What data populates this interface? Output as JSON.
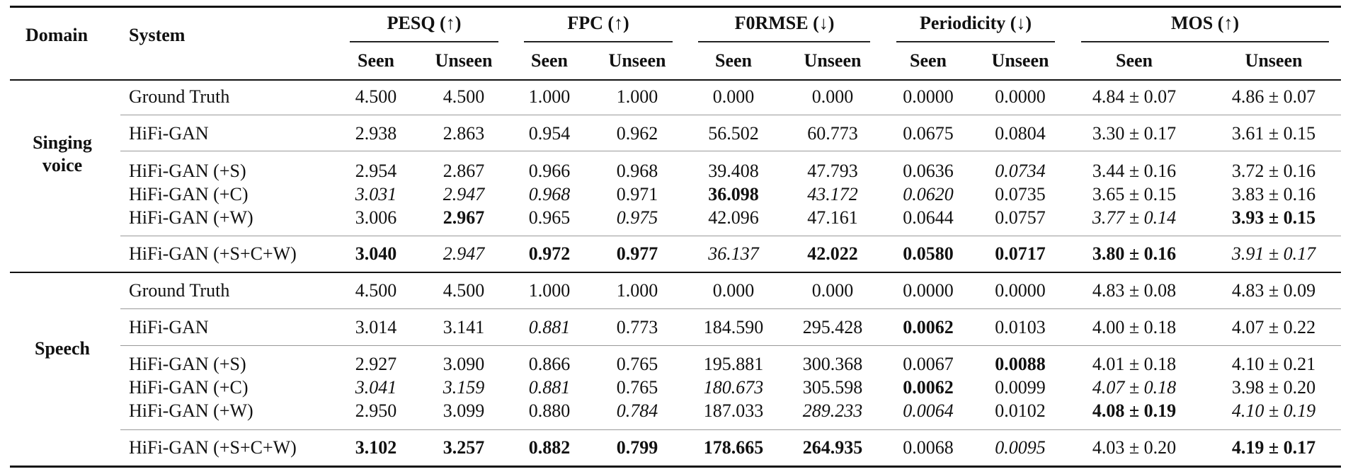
{
  "header": {
    "domain": "Domain",
    "system": "System",
    "groups": [
      {
        "label": "PESQ (↑)"
      },
      {
        "label": "FPC (↑)"
      },
      {
        "label": "F0RMSE (↓)"
      },
      {
        "label": "Periodicity (↓)"
      },
      {
        "label": "MOS (↑)"
      }
    ],
    "sub": [
      "Seen",
      "Unseen",
      "Seen",
      "Unseen",
      "Seen",
      "Unseen",
      "Seen",
      "Unseen",
      "Seen",
      "Unseen"
    ]
  },
  "sections": [
    {
      "domain": [
        "Singing",
        "voice"
      ],
      "rows": [
        {
          "system": "Ground Truth",
          "cells": [
            {
              "v": "4.500"
            },
            {
              "v": "4.500"
            },
            {
              "v": "1.000"
            },
            {
              "v": "1.000"
            },
            {
              "v": "0.000"
            },
            {
              "v": "0.000"
            },
            {
              "v": "0.0000"
            },
            {
              "v": "0.0000"
            },
            {
              "v": "4.84 ± 0.07"
            },
            {
              "v": "4.86 ± 0.07"
            }
          ]
        },
        {
          "system": "HiFi-GAN",
          "cells": [
            {
              "v": "2.938"
            },
            {
              "v": "2.863"
            },
            {
              "v": "0.954"
            },
            {
              "v": "0.962"
            },
            {
              "v": "56.502"
            },
            {
              "v": "60.773"
            },
            {
              "v": "0.0675"
            },
            {
              "v": "0.0804"
            },
            {
              "v": "3.30 ± 0.17"
            },
            {
              "v": "3.61 ± 0.15"
            }
          ]
        },
        {
          "system": "HiFi-GAN (+S)",
          "cells": [
            {
              "v": "2.954"
            },
            {
              "v": "2.867"
            },
            {
              "v": "0.966"
            },
            {
              "v": "0.968"
            },
            {
              "v": "39.408"
            },
            {
              "v": "47.793"
            },
            {
              "v": "0.0636"
            },
            {
              "v": "0.0734",
              "s": "i"
            },
            {
              "v": "3.44 ± 0.16"
            },
            {
              "v": "3.72 ± 0.16"
            }
          ]
        },
        {
          "system": "HiFi-GAN (+C)",
          "cells": [
            {
              "v": "3.031",
              "s": "i"
            },
            {
              "v": "2.947",
              "s": "i"
            },
            {
              "v": "0.968",
              "s": "i"
            },
            {
              "v": "0.971"
            },
            {
              "v": "36.098",
              "s": "b"
            },
            {
              "v": "43.172",
              "s": "i"
            },
            {
              "v": "0.0620",
              "s": "i"
            },
            {
              "v": "0.0735"
            },
            {
              "v": "3.65 ± 0.15"
            },
            {
              "v": "3.83 ± 0.16"
            }
          ]
        },
        {
          "system": "HiFi-GAN (+W)",
          "cells": [
            {
              "v": "3.006"
            },
            {
              "v": "2.967",
              "s": "b"
            },
            {
              "v": "0.965"
            },
            {
              "v": "0.975",
              "s": "i"
            },
            {
              "v": "42.096"
            },
            {
              "v": "47.161"
            },
            {
              "v": "0.0644"
            },
            {
              "v": "0.0757"
            },
            {
              "v": "3.77 ± 0.14",
              "s": "i"
            },
            {
              "v": "3.93 ± 0.15",
              "s": "b"
            }
          ]
        },
        {
          "system": "HiFi-GAN (+S+C+W)",
          "cells": [
            {
              "v": "3.040",
              "s": "b"
            },
            {
              "v": "2.947",
              "s": "i"
            },
            {
              "v": "0.972",
              "s": "b"
            },
            {
              "v": "0.977",
              "s": "b"
            },
            {
              "v": "36.137",
              "s": "i"
            },
            {
              "v": "42.022",
              "s": "b"
            },
            {
              "v": "0.0580",
              "s": "b"
            },
            {
              "v": "0.0717",
              "s": "b"
            },
            {
              "v": "3.80 ± 0.16",
              "s": "b"
            },
            {
              "v": "3.91 ± 0.17",
              "s": "i"
            }
          ]
        }
      ]
    },
    {
      "domain": [
        "Speech"
      ],
      "rows": [
        {
          "system": "Ground Truth",
          "cells": [
            {
              "v": "4.500"
            },
            {
              "v": "4.500"
            },
            {
              "v": "1.000"
            },
            {
              "v": "1.000"
            },
            {
              "v": "0.000"
            },
            {
              "v": "0.000"
            },
            {
              "v": "0.0000"
            },
            {
              "v": "0.0000"
            },
            {
              "v": "4.83 ± 0.08"
            },
            {
              "v": "4.83 ± 0.09"
            }
          ]
        },
        {
          "system": "HiFi-GAN",
          "cells": [
            {
              "v": "3.014"
            },
            {
              "v": "3.141"
            },
            {
              "v": "0.881",
              "s": "i"
            },
            {
              "v": "0.773"
            },
            {
              "v": "184.590"
            },
            {
              "v": "295.428"
            },
            {
              "v": "0.0062",
              "s": "b"
            },
            {
              "v": "0.0103"
            },
            {
              "v": "4.00 ± 0.18"
            },
            {
              "v": "4.07 ± 0.22"
            }
          ]
        },
        {
          "system": "HiFi-GAN (+S)",
          "cells": [
            {
              "v": "2.927"
            },
            {
              "v": "3.090"
            },
            {
              "v": "0.866"
            },
            {
              "v": "0.765"
            },
            {
              "v": "195.881"
            },
            {
              "v": "300.368"
            },
            {
              "v": "0.0067"
            },
            {
              "v": "0.0088",
              "s": "b"
            },
            {
              "v": "4.01 ± 0.18"
            },
            {
              "v": "4.10 ± 0.21"
            }
          ]
        },
        {
          "system": "HiFi-GAN (+C)",
          "cells": [
            {
              "v": "3.041",
              "s": "i"
            },
            {
              "v": "3.159",
              "s": "i"
            },
            {
              "v": "0.881",
              "s": "i"
            },
            {
              "v": "0.765"
            },
            {
              "v": "180.673",
              "s": "i"
            },
            {
              "v": "305.598"
            },
            {
              "v": "0.0062",
              "s": "b"
            },
            {
              "v": "0.0099"
            },
            {
              "v": "4.07 ± 0.18",
              "s": "i"
            },
            {
              "v": "3.98 ± 0.20"
            }
          ]
        },
        {
          "system": "HiFi-GAN (+W)",
          "cells": [
            {
              "v": "2.950"
            },
            {
              "v": "3.099"
            },
            {
              "v": "0.880"
            },
            {
              "v": "0.784",
              "s": "i"
            },
            {
              "v": "187.033"
            },
            {
              "v": "289.233",
              "s": "i"
            },
            {
              "v": "0.0064",
              "s": "i"
            },
            {
              "v": "0.0102"
            },
            {
              "v": "4.08 ± 0.19",
              "s": "b"
            },
            {
              "v": "4.10 ± 0.19",
              "s": "i"
            }
          ]
        },
        {
          "system": "HiFi-GAN (+S+C+W)",
          "cells": [
            {
              "v": "3.102",
              "s": "b"
            },
            {
              "v": "3.257",
              "s": "b"
            },
            {
              "v": "0.882",
              "s": "b"
            },
            {
              "v": "0.799",
              "s": "b"
            },
            {
              "v": "178.665",
              "s": "b"
            },
            {
              "v": "264.935",
              "s": "b"
            },
            {
              "v": "0.0068"
            },
            {
              "v": "0.0095",
              "s": "i"
            },
            {
              "v": "4.03 ± 0.20"
            },
            {
              "v": "4.19 ± 0.17",
              "s": "b"
            }
          ]
        }
      ]
    }
  ]
}
